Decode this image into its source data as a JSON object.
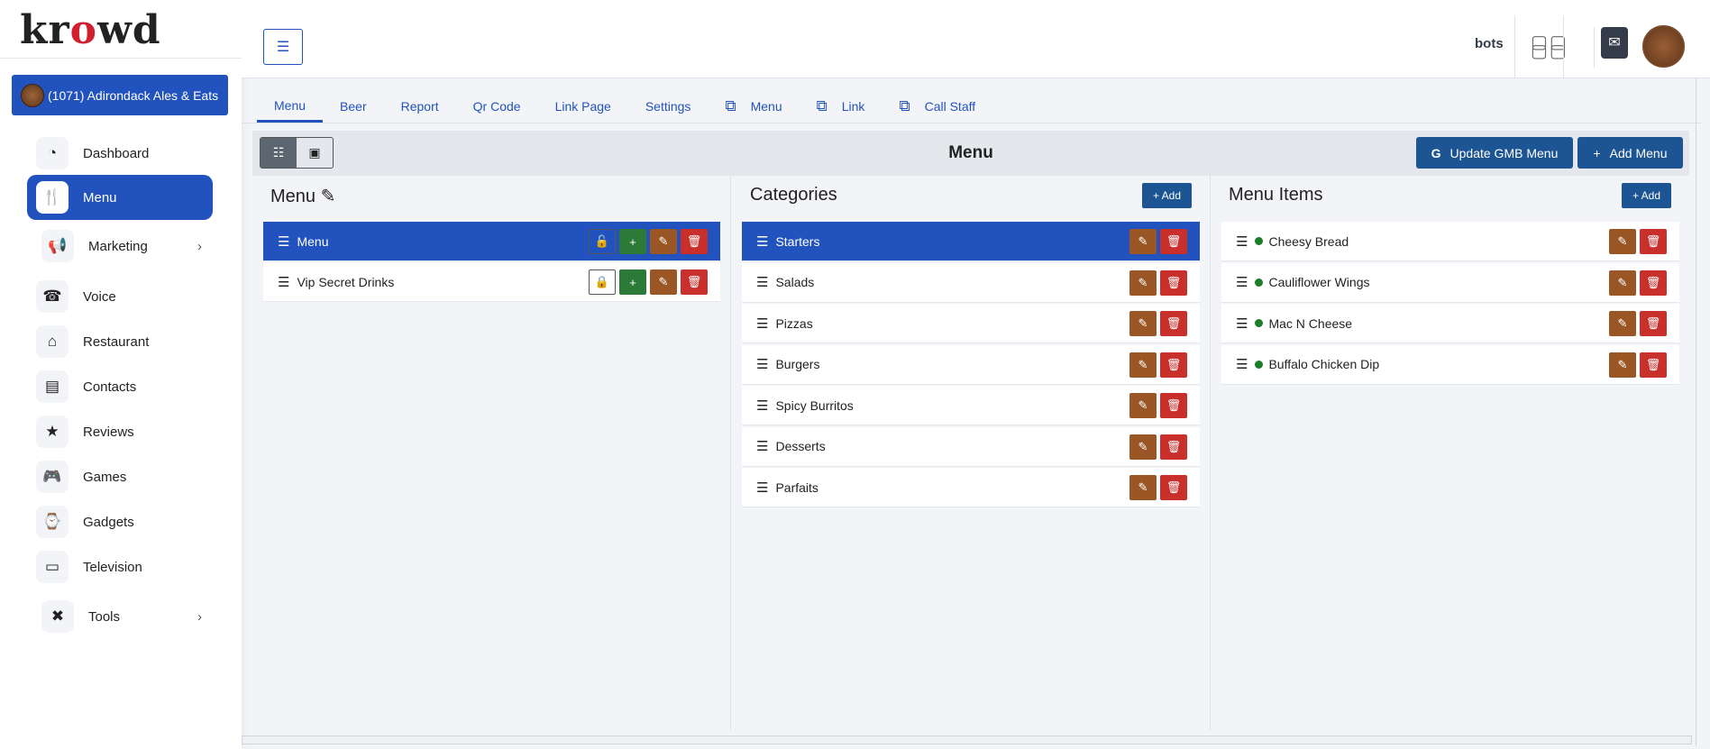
{
  "sidebar": {
    "logo": "krowd",
    "business": "(1071) Adirondack Ales & Eats",
    "items": [
      {
        "label": "Dashboard",
        "icon": "gauge-icon"
      },
      {
        "label": "Menu",
        "icon": "utensils-icon",
        "active": true
      },
      {
        "label": "Marketing",
        "icon": "megaphone-icon",
        "submenu": true
      },
      {
        "label": "Voice",
        "icon": "phone-icon"
      },
      {
        "label": "Restaurant",
        "icon": "store-icon"
      },
      {
        "label": "Contacts",
        "icon": "contacts-icon"
      },
      {
        "label": "Reviews",
        "icon": "star-icon"
      },
      {
        "label": "Games",
        "icon": "gamepad-icon"
      },
      {
        "label": "Gadgets",
        "icon": "watch-icon"
      },
      {
        "label": "Television",
        "icon": "tv-icon"
      },
      {
        "label": "Tools",
        "icon": "tools-icon",
        "submenu": true
      }
    ]
  },
  "header": {
    "bots": "bots"
  },
  "tabs": [
    {
      "label": "Menu",
      "active": true
    },
    {
      "label": "Beer"
    },
    {
      "label": "Report"
    },
    {
      "label": "Qr Code"
    },
    {
      "label": "Link Page"
    },
    {
      "label": "Settings"
    },
    {
      "label": "Menu",
      "external": true
    },
    {
      "label": "Link",
      "external": true
    },
    {
      "label": "Call Staff",
      "external": true
    }
  ],
  "toolbar": {
    "title": "Menu",
    "update_gmb": "Update GMB Menu",
    "add_menu": "Add Menu"
  },
  "menus": {
    "title": "Menu",
    "rows": [
      {
        "label": "Menu",
        "selected": true,
        "locked": false
      },
      {
        "label": "Vip Secret Drinks",
        "locked": true
      }
    ]
  },
  "categories": {
    "title": "Categories",
    "add": "+ Add",
    "rows": [
      "Starters",
      "Salads",
      "Pizzas",
      "Burgers",
      "Spicy Burritos",
      "Desserts",
      "Parfaits"
    ]
  },
  "items": {
    "title": "Menu Items",
    "add": "+ Add",
    "rows": [
      "Cheesy Bread",
      "Cauliflower Wings",
      "Mac N Cheese",
      "Buffalo Chicken Dip"
    ]
  },
  "colors": {
    "primary": "#2252bd",
    "button": "#1d5494",
    "green": "#2c7a38",
    "brown": "#9a5624",
    "red": "#c9302c"
  }
}
